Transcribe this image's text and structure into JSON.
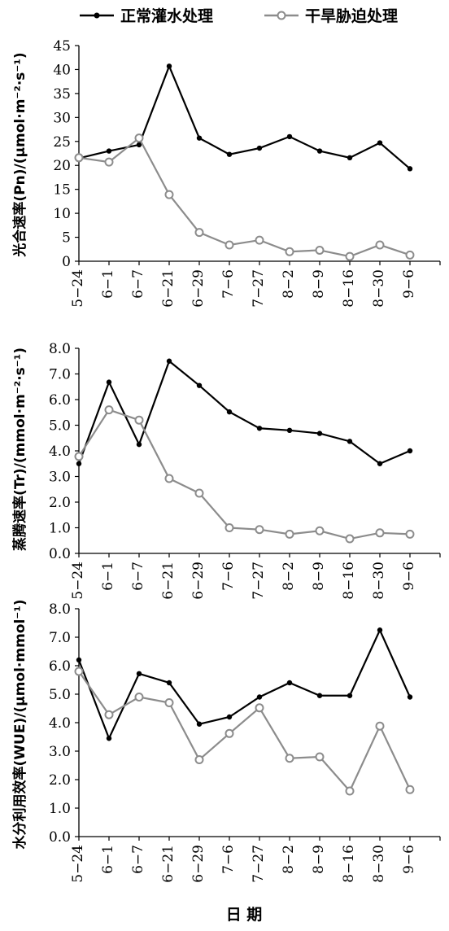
{
  "legend": {
    "normal": "正常灌水处理",
    "drought": "干旱胁迫处理"
  },
  "colors": {
    "normal": "#000000",
    "drought": "#8c8c8c"
  },
  "x_title": "日 期",
  "chart_data": [
    {
      "type": "line",
      "ylabel": "光合速率(Pn)/(μmol·m⁻²·s⁻¹)",
      "ylim": [
        0,
        45
      ],
      "yticks": [
        "0",
        "5",
        "10",
        "15",
        "20",
        "25",
        "30",
        "35",
        "40",
        "45"
      ],
      "yticks_values": [
        0,
        5,
        10,
        15,
        20,
        25,
        30,
        35,
        40,
        45
      ],
      "categories": [
        "5-24",
        "6-1",
        "6-7",
        "6-21",
        "6-29",
        "7-6",
        "7-27",
        "8-2",
        "8-9",
        "8-16",
        "8-30",
        "9-6"
      ],
      "series": [
        {
          "name": "正常灌水处理",
          "values": [
            21.5,
            23.0,
            24.3,
            40.7,
            25.7,
            22.3,
            23.6,
            26.0,
            23.0,
            21.6,
            24.7,
            19.3
          ]
        },
        {
          "name": "干旱胁迫处理",
          "values": [
            21.6,
            20.7,
            25.7,
            13.9,
            6.0,
            3.4,
            4.4,
            2.0,
            2.3,
            1.0,
            3.4,
            1.3
          ]
        }
      ]
    },
    {
      "type": "line",
      "ylabel": "蒸腾速率(Tr)/(mmol·m⁻²·s⁻¹)",
      "ylim": [
        0,
        8
      ],
      "yticks": [
        "0.0",
        "1.0",
        "2.0",
        "3.0",
        "4.0",
        "5.0",
        "6.0",
        "7.0",
        "8.0"
      ],
      "yticks_values": [
        0,
        1,
        2,
        3,
        4,
        5,
        6,
        7,
        8
      ],
      "categories": [
        "5-24",
        "6-1",
        "6-7",
        "6-21",
        "6-29",
        "7-6",
        "7-27",
        "8-2",
        "8-9",
        "8-16",
        "8-30",
        "9-6"
      ],
      "series": [
        {
          "name": "正常灌水处理",
          "values": [
            3.5,
            6.68,
            4.25,
            7.5,
            6.55,
            5.52,
            4.88,
            4.8,
            4.68,
            4.37,
            3.5,
            4.0
          ]
        },
        {
          "name": "干旱胁迫处理",
          "values": [
            3.78,
            5.6,
            5.2,
            2.92,
            2.35,
            1.0,
            0.93,
            0.75,
            0.88,
            0.57,
            0.8,
            0.75
          ]
        }
      ]
    },
    {
      "type": "line",
      "ylabel": "水分利用效率(WUE)/(μmol·mmol⁻¹)",
      "ylim": [
        0,
        8
      ],
      "yticks": [
        "0.0",
        "1.0",
        "2.0",
        "3.0",
        "4.0",
        "5.0",
        "6.0",
        "7.0",
        "8.0"
      ],
      "yticks_values": [
        0,
        1,
        2,
        3,
        4,
        5,
        6,
        7,
        8
      ],
      "categories": [
        "5-24",
        "6-1",
        "6-7",
        "6-21",
        "6-29",
        "7-6",
        "7-27",
        "8-2",
        "8-9",
        "8-16",
        "8-30",
        "9-6"
      ],
      "series": [
        {
          "name": "正常灌水处理",
          "values": [
            6.2,
            3.45,
            5.72,
            5.4,
            3.95,
            4.2,
            4.9,
            5.4,
            4.95,
            4.95,
            7.25,
            4.9
          ]
        },
        {
          "name": "干旱胁迫处理",
          "values": [
            5.8,
            4.28,
            4.9,
            4.7,
            2.7,
            3.62,
            4.52,
            2.75,
            2.8,
            1.6,
            3.88,
            1.65
          ]
        }
      ]
    }
  ]
}
